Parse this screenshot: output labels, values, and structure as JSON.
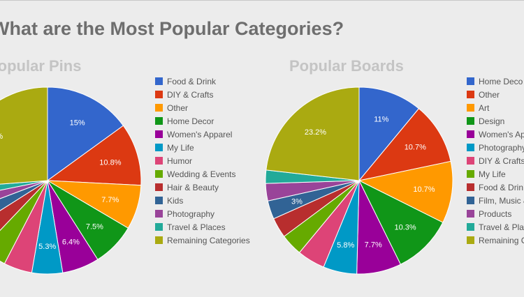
{
  "header": {
    "title": "What are the Most Popular Categories?"
  },
  "chart_data": [
    {
      "type": "pie",
      "title": "Popular Pins",
      "categories": [
        "Food & Drink",
        "DIY & Crafts",
        "Other",
        "Home Decor",
        "Women's Apparel",
        "My Life",
        "Humor",
        "Wedding & Events",
        "Hair & Beauty",
        "Kids",
        "Photography",
        "Travel & Places",
        "Remaining Categories"
      ],
      "values": [
        15,
        10.8,
        7.7,
        7.5,
        6.4,
        5.3,
        4.9,
        4.5,
        3.9,
        3.2,
        2.6,
        2.0,
        26.2
      ],
      "data_labels": [
        "15%",
        "10.8%",
        "7.7%",
        "7.5%",
        "6.4%",
        "5.3%",
        "",
        "",
        "",
        "",
        "",
        "",
        "%"
      ],
      "colors": [
        "#3366cc",
        "#dc3912",
        "#ff9900",
        "#109618",
        "#990099",
        "#0099c6",
        "#dd4477",
        "#66aa00",
        "#b82e2e",
        "#316395",
        "#994499",
        "#22aa99",
        "#aaaa11"
      ],
      "legend_position": "right"
    },
    {
      "type": "pie",
      "title": "Popular Boards",
      "categories": [
        "Home Decor",
        "Other",
        "Art",
        "Design",
        "Women's Apparel",
        "Photography",
        "DIY & Crafts",
        "My Life",
        "Food & Drink",
        "Film, Music & Books",
        "Products",
        "Travel & Places",
        "Remaining Categories"
      ],
      "values": [
        11,
        10.7,
        10.7,
        10.3,
        7.7,
        5.8,
        4.8,
        3.8,
        3.5,
        3.2,
        3.0,
        2.3,
        23.2
      ],
      "data_labels": [
        "11%",
        "10.7%",
        "10.7%",
        "10.3%",
        "7.7%",
        "5.8%",
        "",
        "",
        "",
        "3%",
        "",
        "",
        "23.2%"
      ],
      "colors": [
        "#3366cc",
        "#dc3912",
        "#ff9900",
        "#109618",
        "#990099",
        "#0099c6",
        "#dd4477",
        "#66aa00",
        "#b82e2e",
        "#316395",
        "#994499",
        "#22aa99",
        "#aaaa11"
      ],
      "legend_labels": [
        "Home Deco",
        "Other",
        "Art",
        "Design",
        "Women's Appa",
        "Photography",
        "DIY & Crafts",
        "My Life",
        "Food & Drin",
        "Film, Music &",
        "Products",
        "Travel & Plac",
        "Remaining C"
      ],
      "legend_position": "right"
    }
  ]
}
